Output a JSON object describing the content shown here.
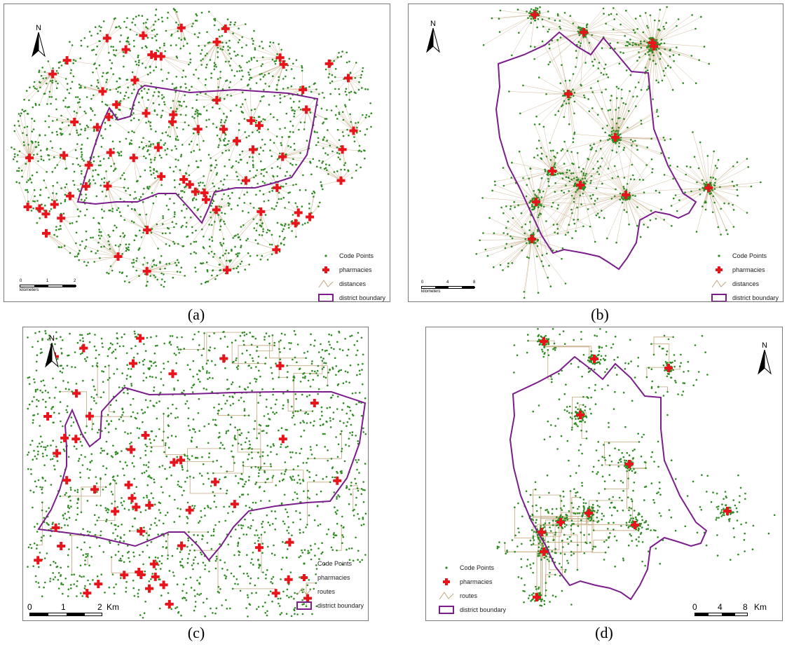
{
  "panels": [
    {
      "id": "a",
      "caption": "(a)",
      "north_label": "N",
      "legend": [
        {
          "label": "Code Points",
          "symbol": "dot"
        },
        {
          "label": "pharmacies",
          "symbol": "cross"
        },
        {
          "label": "distances",
          "symbol": "line"
        },
        {
          "label": "district boundary",
          "symbol": "box"
        }
      ],
      "scale": {
        "ticks": [
          "0",
          "1",
          "2"
        ],
        "unit": "kilometers"
      },
      "pharmacy_count": 70,
      "code_point_density": "high"
    },
    {
      "id": "b",
      "caption": "(b)",
      "north_label": "N",
      "legend": [
        {
          "label": "Code Points",
          "symbol": "dot"
        },
        {
          "label": "pharmacies",
          "symbol": "cross"
        },
        {
          "label": "distances",
          "symbol": "line"
        },
        {
          "label": "district boundary",
          "symbol": "box"
        }
      ],
      "scale": {
        "ticks": [
          "0",
          "4",
          "8"
        ],
        "unit": "kilometers"
      },
      "pharmacy_count": 12,
      "code_point_density": "clustered"
    },
    {
      "id": "c",
      "caption": "(c)",
      "north_label": "N",
      "legend": [
        {
          "label": "Code Points",
          "symbol": "dot"
        },
        {
          "label": "pharmacies",
          "symbol": "cross"
        },
        {
          "label": "routes",
          "symbol": "line"
        },
        {
          "label": "district boundary",
          "symbol": "box"
        }
      ],
      "scale": {
        "ticks": [
          "0",
          "1",
          "2"
        ],
        "unit": "Km"
      },
      "pharmacy_count": 50,
      "code_point_density": "high"
    },
    {
      "id": "d",
      "caption": "(d)",
      "north_label": "N",
      "legend": [
        {
          "label": "Code Points",
          "symbol": "dot"
        },
        {
          "label": "pharmacies",
          "symbol": "cross"
        },
        {
          "label": "routes",
          "symbol": "line"
        },
        {
          "label": "district boundary",
          "symbol": "box"
        }
      ],
      "scale": {
        "ticks": [
          "0",
          "4",
          "8"
        ],
        "unit": "Km"
      },
      "pharmacy_count": 12,
      "code_point_density": "clustered"
    }
  ],
  "colors": {
    "code_point": "#2e8b22",
    "pharmacy": "#e8141c",
    "line": "#c2a67c",
    "boundary": "#7b1e8c",
    "frame": "#7a7a7a"
  }
}
